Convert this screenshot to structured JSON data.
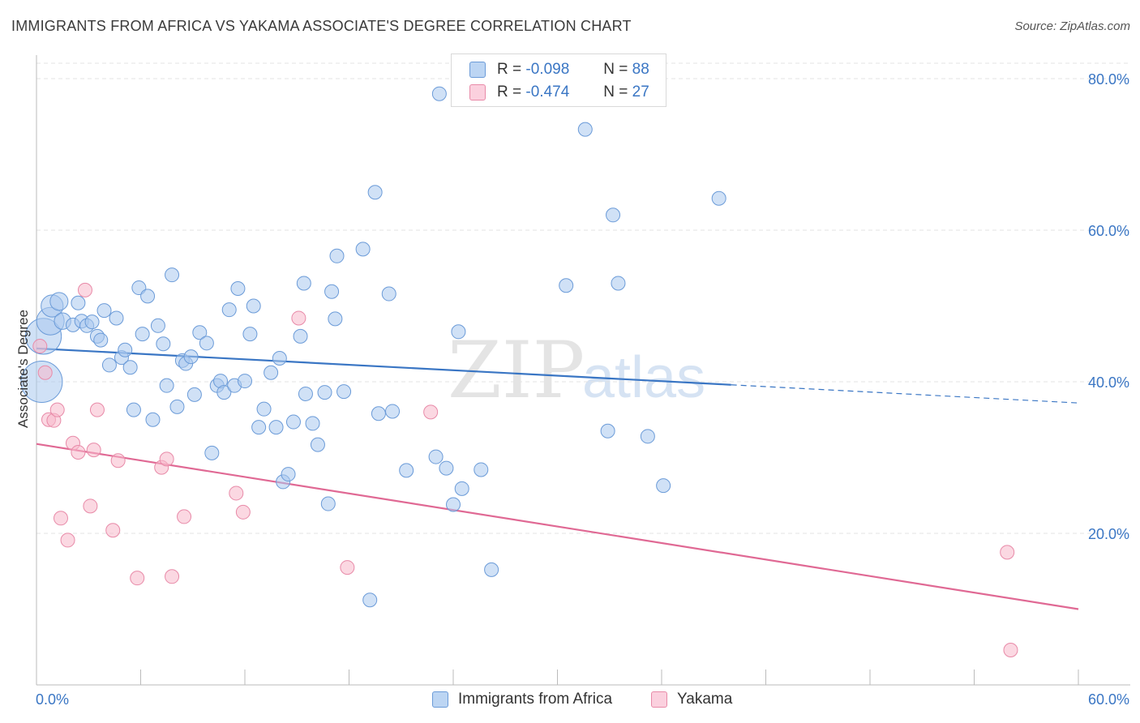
{
  "title": "IMMIGRANTS FROM AFRICA VS YAKAMA ASSOCIATE'S DEGREE CORRELATION CHART",
  "source": "Source: ZipAtlas.com",
  "watermark": {
    "zip": "ZIP",
    "atlas": "atlas"
  },
  "legend": {
    "rows": [
      {
        "r_label": "R =",
        "r_value": "-0.098",
        "n_label": "N =",
        "n_value": "88"
      },
      {
        "r_label": "R =",
        "r_value": "-0.474",
        "n_label": "N =",
        "n_value": "27"
      }
    ]
  },
  "colors": {
    "blue_fill": "#a9c8ef",
    "blue_stroke": "#6b9bd8",
    "blue_line": "#3a76c4",
    "pink_fill": "#f7b8cb",
    "pink_stroke": "#e88aa8",
    "pink_line": "#e06994",
    "tick_text": "#3a76c4"
  },
  "chart_data": {
    "type": "scatter",
    "title": "IMMIGRANTS FROM AFRICA VS YAKAMA ASSOCIATE'S DEGREE CORRELATION CHART",
    "xlabel": "",
    "ylabel": "Associate's Degree",
    "xlim": [
      0,
      60
    ],
    "ylim": [
      0,
      80
    ],
    "x_tick_labels": [
      "0.0%",
      "60.0%"
    ],
    "y_ticks": [
      20,
      40,
      60,
      80
    ],
    "y_tick_labels": [
      "20.0%",
      "40.0%",
      "60.0%",
      "80.0%"
    ],
    "grid": "horizontal dashed",
    "legend_position": "top-center",
    "series": [
      {
        "name": "Immigrants from Africa",
        "color": "#a9c8ef",
        "trend": {
          "x": [
            0,
            40
          ],
          "y": [
            44.4,
            39.6
          ],
          "dashed_to": [
            60,
            37.2
          ]
        },
        "points": [
          [
            0.3,
            40,
            3.0
          ],
          [
            0.4,
            46,
            2.6
          ],
          [
            0.8,
            48,
            2.0
          ],
          [
            0.9,
            50,
            1.6
          ],
          [
            1.3,
            50.6,
            1.3
          ],
          [
            1.5,
            48,
            1.2
          ],
          [
            2.1,
            47.5,
            1.0
          ],
          [
            2.4,
            50.4,
            1.0
          ],
          [
            2.6,
            48,
            1.0
          ],
          [
            2.9,
            47.4,
            1.0
          ],
          [
            3.2,
            47.9,
            1.0
          ],
          [
            3.5,
            46.0,
            1.0
          ],
          [
            3.7,
            45.5,
            1.0
          ],
          [
            3.9,
            49.4,
            1.0
          ],
          [
            4.2,
            42.2,
            1.0
          ],
          [
            4.6,
            48.4,
            1.0
          ],
          [
            4.9,
            43.2,
            1.0
          ],
          [
            5.1,
            44.2,
            1.0
          ],
          [
            5.4,
            41.9,
            1.0
          ],
          [
            5.6,
            36.3,
            1.0
          ],
          [
            5.9,
            52.4,
            1.0
          ],
          [
            6.1,
            46.3,
            1.0
          ],
          [
            6.4,
            51.3,
            1.0
          ],
          [
            6.7,
            35.0,
            1.0
          ],
          [
            7.0,
            47.4,
            1.0
          ],
          [
            7.3,
            45.0,
            1.0
          ],
          [
            7.5,
            39.5,
            1.0
          ],
          [
            7.8,
            54.1,
            1.0
          ],
          [
            8.1,
            36.7,
            1.0
          ],
          [
            8.4,
            42.8,
            1.0
          ],
          [
            8.6,
            42.4,
            1.0
          ],
          [
            8.9,
            43.3,
            1.0
          ],
          [
            9.1,
            38.3,
            1.0
          ],
          [
            9.4,
            46.5,
            1.0
          ],
          [
            9.8,
            45.1,
            1.0
          ],
          [
            10.1,
            30.6,
            1.0
          ],
          [
            10.4,
            39.5,
            1.0
          ],
          [
            10.6,
            40.1,
            1.0
          ],
          [
            10.8,
            38.6,
            1.0
          ],
          [
            11.1,
            49.5,
            1.0
          ],
          [
            11.4,
            39.5,
            1.0
          ],
          [
            11.6,
            52.3,
            1.0
          ],
          [
            12.0,
            40.1,
            1.0
          ],
          [
            12.3,
            46.3,
            1.0
          ],
          [
            12.5,
            50.0,
            1.0
          ],
          [
            12.8,
            34.0,
            1.0
          ],
          [
            13.1,
            36.4,
            1.0
          ],
          [
            13.5,
            41.2,
            1.0
          ],
          [
            13.8,
            34.0,
            1.0
          ],
          [
            14.0,
            43.1,
            1.0
          ],
          [
            14.2,
            26.8,
            1.0
          ],
          [
            14.5,
            27.8,
            1.0
          ],
          [
            14.8,
            34.7,
            1.0
          ],
          [
            15.2,
            46.0,
            1.0
          ],
          [
            15.4,
            53.0,
            1.0
          ],
          [
            15.5,
            38.4,
            1.0
          ],
          [
            15.9,
            34.5,
            1.0
          ],
          [
            16.2,
            31.7,
            1.0
          ],
          [
            16.6,
            38.6,
            1.0
          ],
          [
            16.8,
            23.9,
            1.0
          ],
          [
            17.0,
            51.9,
            1.0
          ],
          [
            17.2,
            48.3,
            1.0
          ],
          [
            17.3,
            56.6,
            1.0
          ],
          [
            17.7,
            38.7,
            1.0
          ],
          [
            18.8,
            57.5,
            1.0
          ],
          [
            19.2,
            11.2,
            1.0
          ],
          [
            19.5,
            65.0,
            1.0
          ],
          [
            19.7,
            35.8,
            1.0
          ],
          [
            20.3,
            51.6,
            1.0
          ],
          [
            20.5,
            36.1,
            1.0
          ],
          [
            21.3,
            28.3,
            1.0
          ],
          [
            23.0,
            30.1,
            1.0
          ],
          [
            23.2,
            78.0,
            1.0
          ],
          [
            23.6,
            28.6,
            1.0
          ],
          [
            24.0,
            23.8,
            1.0
          ],
          [
            24.3,
            46.6,
            1.0
          ],
          [
            24.5,
            25.9,
            1.0
          ],
          [
            25.6,
            28.4,
            1.0
          ],
          [
            26.2,
            15.2,
            1.0
          ],
          [
            30.5,
            52.7,
            1.0
          ],
          [
            31.6,
            73.3,
            1.0
          ],
          [
            32.9,
            33.5,
            1.0
          ],
          [
            33.2,
            62.0,
            1.0
          ],
          [
            33.5,
            53.0,
            1.0
          ],
          [
            35.2,
            32.8,
            1.0
          ],
          [
            36.1,
            26.3,
            1.0
          ],
          [
            39.3,
            64.2,
            1.0
          ]
        ]
      },
      {
        "name": "Yakama",
        "color": "#f7b8cb",
        "trend": {
          "x": [
            0,
            60
          ],
          "y": [
            31.8,
            10.0
          ]
        },
        "points": [
          [
            0.2,
            44.7,
            1.0
          ],
          [
            0.5,
            41.2,
            1.0
          ],
          [
            0.7,
            35.0,
            1.0
          ],
          [
            1.0,
            34.9,
            1.0
          ],
          [
            1.2,
            36.3,
            1.0
          ],
          [
            1.4,
            22.0,
            1.0
          ],
          [
            1.8,
            19.1,
            1.0
          ],
          [
            2.1,
            31.9,
            1.0
          ],
          [
            2.4,
            30.7,
            1.0
          ],
          [
            2.8,
            52.1,
            1.0
          ],
          [
            3.1,
            23.6,
            1.0
          ],
          [
            3.3,
            31.0,
            1.0
          ],
          [
            3.5,
            36.3,
            1.0
          ],
          [
            4.4,
            20.4,
            1.0
          ],
          [
            4.7,
            29.6,
            1.0
          ],
          [
            5.8,
            14.1,
            1.0
          ],
          [
            7.2,
            28.7,
            1.0
          ],
          [
            7.5,
            29.8,
            1.0
          ],
          [
            7.8,
            14.3,
            1.0
          ],
          [
            8.5,
            22.2,
            1.0
          ],
          [
            11.5,
            25.3,
            1.0
          ],
          [
            11.9,
            22.8,
            1.0
          ],
          [
            15.1,
            48.4,
            1.0
          ],
          [
            17.9,
            15.5,
            1.0
          ],
          [
            22.7,
            36.0,
            1.0
          ],
          [
            55.9,
            17.5,
            1.0
          ],
          [
            56.1,
            4.6,
            1.0
          ]
        ]
      }
    ]
  },
  "bottom_legend": {
    "items": [
      {
        "label": "Immigrants from Africa"
      },
      {
        "label": "Yakama"
      }
    ]
  }
}
